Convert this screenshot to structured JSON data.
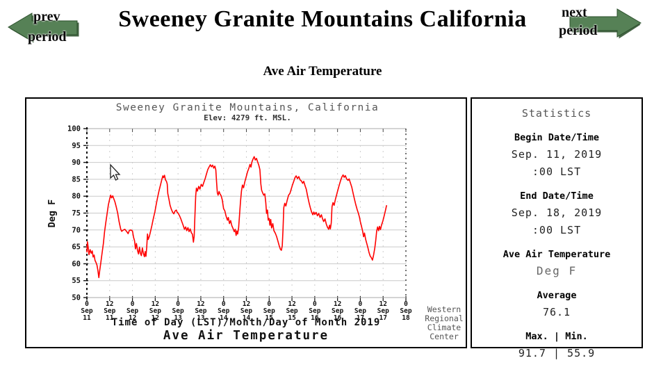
{
  "header": {
    "title": "Sweeney Granite Mountains California",
    "subtitle": "Ave Air Temperature",
    "prev_button": {
      "line1": "prev",
      "line2": "period"
    },
    "next_button": {
      "line1": "next",
      "line2": "period"
    },
    "arrow_color": "#568156",
    "arrow_shadow_color": "#264a26"
  },
  "chart_panel": {
    "title": "Sweeney Granite Mountains, California",
    "elevation": "Elev: 4279 ft. MSL.",
    "ylabel": "Deg F",
    "xlabel": "Time of Day (LST)/Month/Day of Month 2019",
    "footer_label": "Ave Air Temperature",
    "credit_lines": [
      "Western",
      "Regional",
      "Climate",
      "Center"
    ]
  },
  "chart_data": {
    "type": "line",
    "title": "Sweeney Granite Mountains, California",
    "subtitle": "Elev: 4279 ft. MSL.",
    "xlabel": "Time of Day (LST)/Month/Day of Month 2019",
    "ylabel": "Deg F",
    "series_name": "Ave Air Temperature",
    "line_color": "#ff0000",
    "grid": true,
    "ylim": [
      50,
      100
    ],
    "yticks": [
      100,
      95,
      90,
      85,
      80,
      75,
      70,
      65,
      60,
      55,
      50
    ],
    "x_hours_range": [
      0,
      168
    ],
    "xticks": [
      {
        "hour": "0",
        "month": "Sep",
        "day": "11"
      },
      {
        "hour": "12",
        "month": "Sep",
        "day": "11"
      },
      {
        "hour": "0",
        "month": "Sep",
        "day": "12"
      },
      {
        "hour": "12",
        "month": "Sep",
        "day": "12"
      },
      {
        "hour": "0",
        "month": "Sep",
        "day": "13"
      },
      {
        "hour": "12",
        "month": "Sep",
        "day": "13"
      },
      {
        "hour": "0",
        "month": "Sep",
        "day": "14"
      },
      {
        "hour": "12",
        "month": "Sep",
        "day": "14"
      },
      {
        "hour": "0",
        "month": "Sep",
        "day": "15"
      },
      {
        "hour": "12",
        "month": "Sep",
        "day": "15"
      },
      {
        "hour": "0",
        "month": "Sep",
        "day": "16"
      },
      {
        "hour": "12",
        "month": "Sep",
        "day": "16"
      },
      {
        "hour": "0",
        "month": "Sep",
        "day": "17"
      },
      {
        "hour": "12",
        "month": "Sep",
        "day": "17"
      },
      {
        "hour": "0",
        "month": "Sep",
        "day": "18"
      }
    ],
    "points": [
      [
        0,
        63.5
      ],
      [
        0.3,
        66.5
      ],
      [
        0.7,
        64.8
      ],
      [
        1.1,
        62.7
      ],
      [
        1.7,
        64.2
      ],
      [
        2.3,
        63.1
      ],
      [
        2.8,
        63.8
      ],
      [
        3.3,
        62.0
      ],
      [
        3.8,
        62.6
      ],
      [
        4.3,
        61.0
      ],
      [
        4.8,
        60.4
      ],
      [
        5.3,
        59.6
      ],
      [
        5.8,
        58.1
      ],
      [
        6.3,
        55.9
      ],
      [
        6.8,
        58.2
      ],
      [
        7.3,
        60.1
      ],
      [
        8,
        63.2
      ],
      [
        8.7,
        66.1
      ],
      [
        9.3,
        69.4
      ],
      [
        10,
        72.3
      ],
      [
        10.7,
        75.0
      ],
      [
        11.3,
        77.4
      ],
      [
        12,
        79.2
      ],
      [
        12.5,
        80.3
      ],
      [
        13,
        79.5
      ],
      [
        13.6,
        80.1
      ],
      [
        14.2,
        79.2
      ],
      [
        14.8,
        78.3
      ],
      [
        15.5,
        76.8
      ],
      [
        16.2,
        75.0
      ],
      [
        17,
        72.4
      ],
      [
        17.8,
        70.3
      ],
      [
        18.3,
        69.6
      ],
      [
        19.2,
        70.0
      ],
      [
        20,
        70.2
      ],
      [
        21,
        69.5
      ],
      [
        21.7,
        68.9
      ],
      [
        22.4,
        69.9
      ],
      [
        23.2,
        70.0
      ],
      [
        24,
        69.7
      ],
      [
        24.6,
        67.8
      ],
      [
        25.1,
        66.8
      ],
      [
        25.6,
        64.4
      ],
      [
        26.1,
        66.0
      ],
      [
        26.7,
        63.9
      ],
      [
        27.2,
        62.9
      ],
      [
        27.7,
        64.9
      ],
      [
        28.2,
        63.1
      ],
      [
        28.7,
        62.4
      ],
      [
        29.2,
        64.7
      ],
      [
        29.8,
        63.0
      ],
      [
        30.3,
        62.1
      ],
      [
        30.7,
        63.6
      ],
      [
        31.1,
        62.2
      ],
      [
        31.5,
        64.9
      ],
      [
        31.9,
        68.8
      ],
      [
        32.3,
        67.2
      ],
      [
        32.9,
        68.1
      ],
      [
        33.5,
        69.5
      ],
      [
        34.2,
        71.2
      ],
      [
        35,
        73.4
      ],
      [
        35.8,
        75.3
      ],
      [
        36.5,
        77.5
      ],
      [
        37.2,
        79.5
      ],
      [
        38,
        81.6
      ],
      [
        38.8,
        83.4
      ],
      [
        39.5,
        85.0
      ],
      [
        40,
        86.0
      ],
      [
        40.4,
        85.5
      ],
      [
        40.9,
        86.2
      ],
      [
        41.4,
        84.8
      ],
      [
        41.9,
        84.4
      ],
      [
        42.3,
        83.6
      ],
      [
        42.6,
        80.8
      ],
      [
        43.2,
        79.2
      ],
      [
        43.8,
        77.3
      ],
      [
        44.5,
        76.1
      ],
      [
        45.2,
        75.2
      ],
      [
        45.8,
        74.8
      ],
      [
        46.4,
        75.6
      ],
      [
        47.1,
        75.9
      ],
      [
        47.6,
        75.2
      ],
      [
        48,
        75.0
      ],
      [
        48.7,
        74.3
      ],
      [
        49.4,
        73.4
      ],
      [
        50.1,
        72.3
      ],
      [
        50.7,
        71.4
      ],
      [
        51.4,
        70.2
      ],
      [
        52,
        70.9
      ],
      [
        52.6,
        69.8
      ],
      [
        53.2,
        70.7
      ],
      [
        53.8,
        69.5
      ],
      [
        54.4,
        70.3
      ],
      [
        55,
        69.2
      ],
      [
        55.6,
        68.7
      ],
      [
        56.1,
        66.4
      ],
      [
        56.5,
        68.2
      ],
      [
        56.9,
        74.5
      ],
      [
        57.3,
        80.2
      ],
      [
        57.7,
        82.4
      ],
      [
        58.2,
        81.5
      ],
      [
        58.9,
        82.9
      ],
      [
        59.5,
        82.1
      ],
      [
        60.2,
        83.5
      ],
      [
        60.9,
        82.9
      ],
      [
        61.6,
        84.1
      ],
      [
        62.3,
        85.2
      ],
      [
        63,
        86.6
      ],
      [
        63.7,
        87.9
      ],
      [
        64.4,
        88.7
      ],
      [
        65,
        89.3
      ],
      [
        65.6,
        88.7
      ],
      [
        66.2,
        89.2
      ],
      [
        66.8,
        88.3
      ],
      [
        67.4,
        88.9
      ],
      [
        67.9,
        87.8
      ],
      [
        68.3,
        84.2
      ],
      [
        68.7,
        81.0
      ],
      [
        69.1,
        80.3
      ],
      [
        69.6,
        81.4
      ],
      [
        70.1,
        80.7
      ],
      [
        70.7,
        80.1
      ],
      [
        71.3,
        78.9
      ],
      [
        72,
        76.3
      ],
      [
        72.6,
        75.7
      ],
      [
        73.3,
        74.1
      ],
      [
        74,
        72.9
      ],
      [
        74.5,
        73.7
      ],
      [
        75.1,
        71.9
      ],
      [
        75.7,
        72.8
      ],
      [
        76.3,
        71.3
      ],
      [
        77,
        70.4
      ],
      [
        77.6,
        69.5
      ],
      [
        78.1,
        70.2
      ],
      [
        78.6,
        68.4
      ],
      [
        79,
        69.7
      ],
      [
        79.4,
        68.8
      ],
      [
        79.9,
        70.6
      ],
      [
        80.4,
        74.6
      ],
      [
        80.9,
        78.4
      ],
      [
        81.4,
        81.5
      ],
      [
        81.9,
        83.3
      ],
      [
        82.5,
        82.5
      ],
      [
        83.2,
        84.3
      ],
      [
        83.9,
        85.7
      ],
      [
        84.6,
        87.2
      ],
      [
        85.3,
        88.3
      ],
      [
        85.9,
        89.4
      ],
      [
        86.4,
        88.6
      ],
      [
        86.9,
        90.1
      ],
      [
        87.5,
        91.0
      ],
      [
        88.1,
        91.7
      ],
      [
        88.7,
        90.7
      ],
      [
        89.3,
        91.2
      ],
      [
        89.9,
        90.2
      ],
      [
        90.5,
        89.2
      ],
      [
        91.1,
        87.9
      ],
      [
        91.6,
        83.6
      ],
      [
        92,
        81.8
      ],
      [
        92.5,
        81.1
      ],
      [
        93.1,
        80.3
      ],
      [
        93.7,
        80.7
      ],
      [
        94.2,
        78.1
      ],
      [
        94.6,
        74.9
      ],
      [
        95.1,
        75.9
      ],
      [
        95.5,
        72.9
      ],
      [
        96,
        73.4
      ],
      [
        96.4,
        71.4
      ],
      [
        96.8,
        73.1
      ],
      [
        97.3,
        70.6
      ],
      [
        97.9,
        71.9
      ],
      [
        98.5,
        69.8
      ],
      [
        99.2,
        69.1
      ],
      [
        99.9,
        68.1
      ],
      [
        100.5,
        66.9
      ],
      [
        101.2,
        65.5
      ],
      [
        101.9,
        64.3
      ],
      [
        102.4,
        64.0
      ],
      [
        102.9,
        65.3
      ],
      [
        103.3,
        70.2
      ],
      [
        103.7,
        76.6
      ],
      [
        104.2,
        77.9
      ],
      [
        104.8,
        77.1
      ],
      [
        105.5,
        78.8
      ],
      [
        106.2,
        80.3
      ],
      [
        106.9,
        80.8
      ],
      [
        107.6,
        82.1
      ],
      [
        108.3,
        83.4
      ],
      [
        109,
        84.5
      ],
      [
        109.6,
        85.5
      ],
      [
        110.2,
        86.0
      ],
      [
        110.9,
        85.2
      ],
      [
        111.6,
        85.8
      ],
      [
        112.3,
        84.8
      ],
      [
        113,
        84.5
      ],
      [
        113.6,
        83.8
      ],
      [
        114.2,
        84.4
      ],
      [
        114.9,
        83.1
      ],
      [
        115.5,
        82.1
      ],
      [
        116.2,
        80.1
      ],
      [
        116.9,
        78.3
      ],
      [
        117.6,
        76.7
      ],
      [
        118.3,
        75.4
      ],
      [
        119,
        74.5
      ],
      [
        119.5,
        75.3
      ],
      [
        120,
        74.6
      ],
      [
        120.7,
        75.2
      ],
      [
        121.4,
        74.2
      ],
      [
        122.1,
        74.9
      ],
      [
        122.8,
        73.7
      ],
      [
        123.5,
        74.5
      ],
      [
        124.1,
        73.3
      ],
      [
        124.7,
        72.5
      ],
      [
        125.4,
        73.3
      ],
      [
        126.1,
        71.7
      ],
      [
        126.7,
        70.8
      ],
      [
        127.3,
        70.2
      ],
      [
        127.8,
        71.4
      ],
      [
        128.2,
        70.3
      ],
      [
        128.7,
        72.1
      ],
      [
        129.1,
        76.9
      ],
      [
        129.6,
        78.1
      ],
      [
        130.2,
        77.3
      ],
      [
        130.9,
        79.1
      ],
      [
        131.5,
        80.4
      ],
      [
        132.2,
        81.9
      ],
      [
        132.9,
        83.3
      ],
      [
        133.6,
        84.6
      ],
      [
        134.3,
        85.7
      ],
      [
        134.9,
        86.3
      ],
      [
        135.5,
        85.6
      ],
      [
        136.1,
        86.1
      ],
      [
        136.8,
        85.1
      ],
      [
        137.5,
        84.7
      ],
      [
        138.1,
        85.1
      ],
      [
        138.8,
        83.9
      ],
      [
        139.5,
        82.7
      ],
      [
        140.2,
        80.9
      ],
      [
        140.9,
        79.1
      ],
      [
        141.6,
        77.5
      ],
      [
        142.3,
        76.1
      ],
      [
        143,
        74.9
      ],
      [
        143.6,
        73.7
      ],
      [
        144,
        72.5
      ],
      [
        144.6,
        71.1
      ],
      [
        145.2,
        69.7
      ],
      [
        145.7,
        68.0
      ],
      [
        146.2,
        69.1
      ],
      [
        146.8,
        67.2
      ],
      [
        147.4,
        66.0
      ],
      [
        148,
        64.7
      ],
      [
        148.6,
        63.3
      ],
      [
        149.2,
        62.3
      ],
      [
        149.8,
        61.8
      ],
      [
        150.4,
        61.1
      ],
      [
        151,
        62.7
      ],
      [
        151.6,
        64.6
      ],
      [
        152.1,
        66.9
      ],
      [
        152.6,
        69.6
      ],
      [
        153.1,
        70.9
      ],
      [
        153.6,
        69.8
      ],
      [
        154.1,
        71.1
      ],
      [
        154.6,
        70.1
      ],
      [
        155.2,
        71.5
      ],
      [
        155.9,
        72.7
      ],
      [
        156.5,
        74.1
      ],
      [
        157.2,
        75.7
      ],
      [
        157.8,
        77.2
      ]
    ]
  },
  "stats_panel": {
    "title": "Statistics",
    "begin": {
      "label": "Begin Date/Time",
      "date": "Sep. 11, 2019",
      "time": ":00 LST"
    },
    "end": {
      "label": "End Date/Time",
      "date": "Sep. 18, 2019",
      "time": ":00 LST"
    },
    "variable": {
      "label": "Ave Air Temperature",
      "unit": "Deg F"
    },
    "average": {
      "label": "Average",
      "value": "76.1"
    },
    "max_min": {
      "label": "Max. | Min.",
      "value": "91.7 | 55.9"
    }
  }
}
